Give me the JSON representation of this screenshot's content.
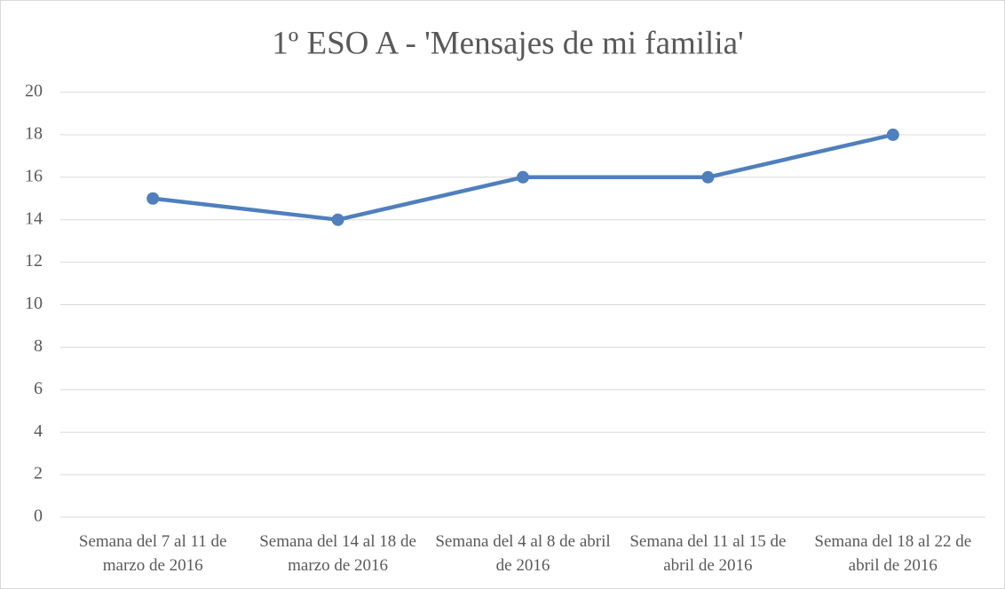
{
  "chart_data": {
    "type": "line",
    "title": "1º ESO A - 'Mensajes de mi familia'",
    "categories": [
      "Semana del 7 al 11 de marzo de 2016",
      "Semana del 14 al 18 de marzo de 2016",
      "Semana del 4 al 8 de abril de 2016",
      "Semana del 11 al 15 de abril de 2016",
      "Semana del 18 al 22 de abril de 2016"
    ],
    "values": [
      15,
      14,
      16,
      16,
      18
    ],
    "color": "#4f7fbd",
    "ylim": [
      0,
      20
    ],
    "yticks": [
      0,
      2,
      4,
      6,
      8,
      10,
      12,
      14,
      16,
      18,
      20
    ],
    "grid": true
  }
}
